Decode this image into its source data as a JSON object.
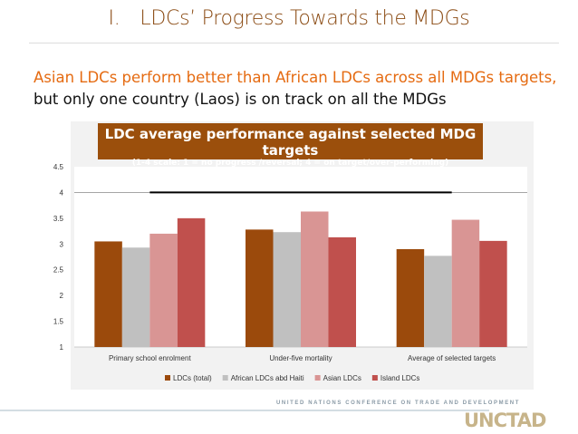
{
  "header": {
    "number": "I.",
    "title": "LDCs’ Progress Towards the MDGs"
  },
  "subtitle": {
    "highlight": "Asian LDCs perform better than African LDCs across all MDGs targets,",
    "rest": " but only one country (Laos) is on track on all the MDGs"
  },
  "footer": {
    "org": "UNITED NATIONS CONFERENCE ON TRADE AND DEVELOPMENT",
    "logo": "UNCTAD"
  },
  "chart_data": {
    "type": "bar",
    "title": "LDC average performance against selected MDG targets",
    "subtitle": "(1-4 scale: 1 = no progress /reversal; 4 = on target/over-performing)",
    "categories": [
      "Primary school enrolment",
      "Under-five mortality",
      "Average of selected targets"
    ],
    "series": [
      {
        "name": "LDCs (total)",
        "values": [
          3.05,
          3.28,
          2.9
        ],
        "color": "#9b4a0c"
      },
      {
        "name": "African LDCs abd Haiti",
        "values": [
          2.93,
          3.23,
          2.77
        ],
        "color": "#c0c0c0"
      },
      {
        "name": "Asian LDCs",
        "values": [
          3.2,
          3.63,
          3.47
        ],
        "color": "#d99594"
      },
      {
        "name": "Island LDCs",
        "values": [
          3.5,
          3.13,
          3.06
        ],
        "color": "#c0504d"
      }
    ],
    "target_line": 4,
    "ylim": [
      1,
      4.5
    ],
    "yticks": [
      "1",
      "1.5",
      "2",
      "2.5",
      "3",
      "3.5",
      "4",
      "4.5"
    ],
    "grid": "horizontal at 4 only",
    "legend": "bottom"
  }
}
